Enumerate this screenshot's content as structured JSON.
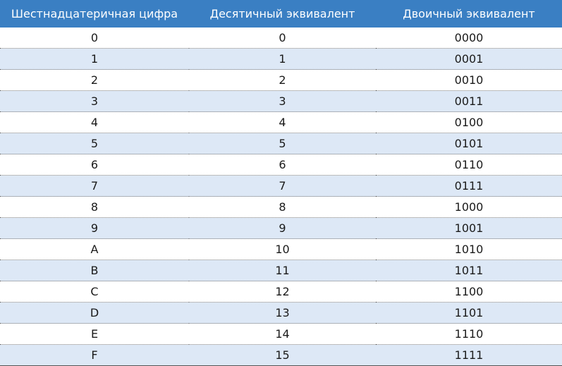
{
  "table": {
    "headers": [
      "Шестнадцатеричная цифра",
      "Десятичный эквивалент",
      "Двоичный эквивалент"
    ],
    "rows": [
      [
        "0",
        "0",
        "0000"
      ],
      [
        "1",
        "1",
        "0001"
      ],
      [
        "2",
        "2",
        "0010"
      ],
      [
        "3",
        "3",
        "0011"
      ],
      [
        "4",
        "4",
        "0100"
      ],
      [
        "5",
        "5",
        "0101"
      ],
      [
        "6",
        "6",
        "0110"
      ],
      [
        "7",
        "7",
        "0111"
      ],
      [
        "8",
        "8",
        "1000"
      ],
      [
        "9",
        "9",
        "1001"
      ],
      [
        "A",
        "10",
        "1010"
      ],
      [
        "B",
        "11",
        "1011"
      ],
      [
        "C",
        "12",
        "1100"
      ],
      [
        "D",
        "13",
        "1101"
      ],
      [
        "E",
        "14",
        "1110"
      ],
      [
        "F",
        "15",
        "1111"
      ]
    ]
  },
  "colors": {
    "header_background": "#3a7fc3",
    "header_text": "#ffffff",
    "striped_row_background": "#dde8f6",
    "row_background": "#ffffff"
  }
}
